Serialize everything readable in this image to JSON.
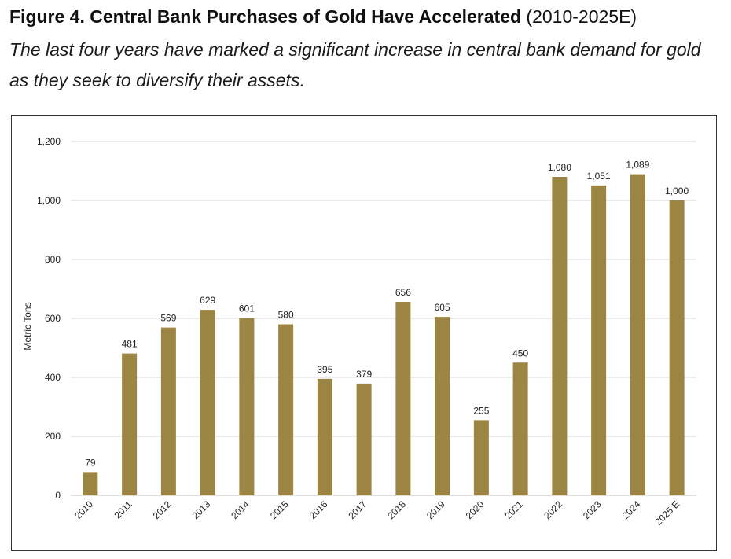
{
  "heading": {
    "bold": "Figure 4. Central Bank Purchases of Gold Have Accelerated",
    "rest": " (2010-2025E)"
  },
  "subtitle": "The last four years have marked a significant increase in central bank demand for gold as they seek to diversify their assets.",
  "colors": {
    "bar": "#9c8442",
    "grid": "#d9d9d9",
    "axis": "#bfbfbf",
    "frame": "#333333"
  },
  "chart_data": {
    "type": "bar",
    "title": "",
    "xlabel": "",
    "ylabel": "Metric Tons",
    "categories": [
      "2010",
      "2011",
      "2012",
      "2013",
      "2014",
      "2015",
      "2016",
      "2017",
      "2018",
      "2019",
      "2020",
      "2021",
      "2022",
      "2023",
      "2024",
      "2025 E"
    ],
    "values": [
      79,
      481,
      569,
      629,
      601,
      580,
      395,
      379,
      656,
      605,
      255,
      450,
      1080,
      1051,
      1089,
      1000
    ],
    "value_labels": [
      "79",
      "481",
      "569",
      "629",
      "601",
      "580",
      "395",
      "379",
      "656",
      "605",
      "255",
      "450",
      "1,080",
      "1,051",
      "1,089",
      "1,000"
    ],
    "yticks": [
      0,
      200,
      400,
      600,
      800,
      1000,
      1200
    ],
    "ytick_labels": [
      "0",
      "200",
      "400",
      "600",
      "800",
      "1,000",
      "1,200"
    ],
    "ylim": [
      0,
      1200
    ],
    "grid": true,
    "legend": "none"
  }
}
